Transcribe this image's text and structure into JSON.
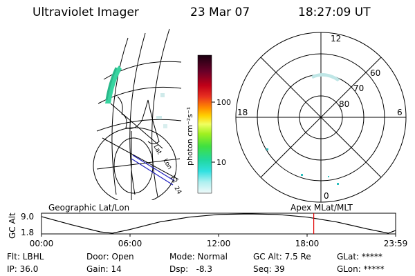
{
  "header": {
    "instrument": "Ultraviolet Imager",
    "date": "23 Mar 07",
    "time": "18:27:09 UT"
  },
  "colorbar": {
    "unit_label": "photon cm⁻²s⁻¹",
    "ticks": [
      "100",
      "10"
    ]
  },
  "polar_plot": {
    "mlt_labels": [
      "12",
      "18",
      "6",
      "0"
    ],
    "lat_labels": [
      "60",
      "70",
      "80"
    ]
  },
  "geo_map": {
    "grid_labels": [
      "Lat",
      "Lon",
      "12",
      "24"
    ]
  },
  "altitude_strip": {
    "left_title": "Geographic Lat/Lon",
    "right_title": "Apex MLat/MLT",
    "ylabel": "GC Alt",
    "y_ticks": [
      "9.0",
      "1.8"
    ],
    "x_ticks": [
      "00:00",
      "06:00",
      "12:00",
      "18:00",
      "23:59"
    ],
    "marker_color": "#e00000"
  },
  "chart_data": {
    "type": "line",
    "x_unit": "hours UT",
    "ylabel": "GC Alt",
    "ylim": [
      1.8,
      9.0
    ],
    "x": [
      0,
      2,
      4,
      4.8,
      6,
      8,
      10,
      12,
      14,
      16,
      18,
      20,
      22,
      23.5,
      23.99
    ],
    "y": [
      8.0,
      5.0,
      2.3,
      1.8,
      3.2,
      6.0,
      7.8,
      8.8,
      9.0,
      8.8,
      7.8,
      6.0,
      3.5,
      1.8,
      2.8
    ],
    "current_time": 18.45
  },
  "footer": {
    "filter": "Flt: LBHL",
    "ip": "IP: 36.0",
    "door": "Door: Open",
    "gain": "Gain: 14",
    "mode": "Mode: Normal",
    "dsp": "Dsp:   -8.3",
    "gc_alt": "GC Alt: 7.5 Re",
    "seq": "Seq: 39",
    "glat": "GLat: *****",
    "glon": "GLon: *****"
  }
}
